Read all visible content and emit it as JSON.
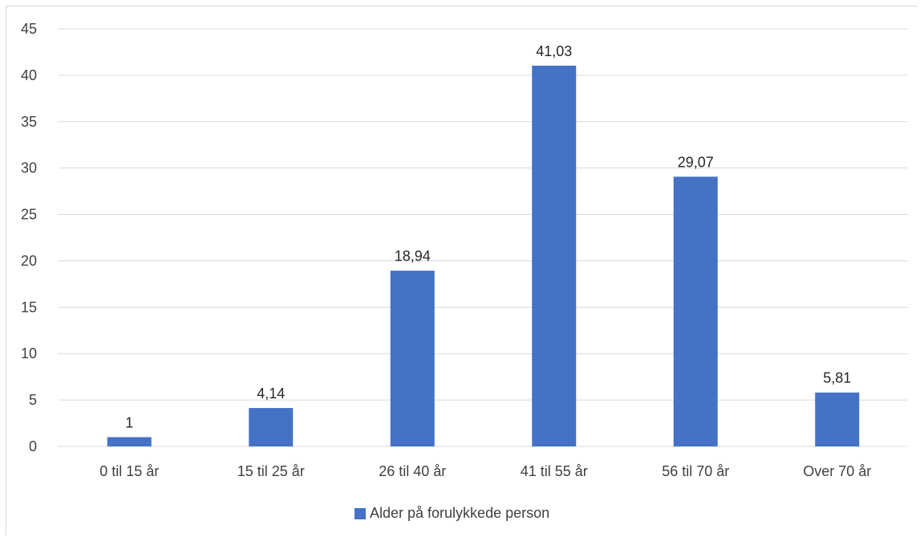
{
  "chart_data": {
    "type": "bar",
    "categories": [
      "0 til 15 år",
      "15 til 25 år",
      "26 til 40 år",
      "41 til 55 år",
      "56 til 70 år",
      "Over 70 år"
    ],
    "series": [
      {
        "name": "Alder på forulykkede person",
        "values": [
          1,
          4.14,
          18.94,
          41.03,
          29.07,
          5.81
        ],
        "labels": [
          "1",
          "4,14",
          "18,94",
          "41,03",
          "29,07",
          "5,81"
        ]
      }
    ],
    "y_ticks": [
      "0",
      "5",
      "10",
      "15",
      "20",
      "25",
      "30",
      "35",
      "40",
      "45"
    ],
    "ylim": [
      0,
      45
    ],
    "grid": true,
    "legend_position": "bottom",
    "colors": {
      "bar": "#4472c4",
      "grid": "#d9d9d9",
      "text": "#404040",
      "label": "#262626"
    }
  }
}
